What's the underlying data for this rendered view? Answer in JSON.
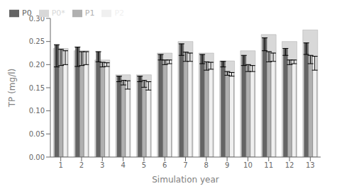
{
  "chart_data": {
    "type": "bar",
    "xlabel": "Simulation year",
    "ylabel": "TP (mg/l)",
    "categories": [
      "1",
      "2",
      "3",
      "4",
      "5",
      "6",
      "7",
      "8",
      "9",
      "10",
      "11",
      "12",
      "13"
    ],
    "series": [
      {
        "name": "P0*",
        "color": "#d8d8d8",
        "values": [
          0.235,
          0.23,
          0.21,
          0.178,
          0.178,
          0.225,
          0.25,
          0.225,
          0.208,
          0.23,
          0.265,
          0.25,
          0.275
        ]
      },
      {
        "name": "P0",
        "color": "#646464",
        "values": [
          0.243,
          0.238,
          0.228,
          0.175,
          0.175,
          0.222,
          0.245,
          0.222,
          0.207,
          0.22,
          0.258,
          0.235,
          0.247
        ],
        "error_lo": [
          0.048,
          0.042,
          0.022,
          0.012,
          0.012,
          0.012,
          0.025,
          0.02,
          0.012,
          0.022,
          0.028,
          0.015,
          0.025
        ]
      },
      {
        "name": "P1",
        "color": "#b0b0b0",
        "values": [
          0.233,
          0.228,
          0.205,
          0.166,
          0.166,
          0.21,
          0.227,
          0.206,
          0.185,
          0.2,
          0.228,
          0.21,
          0.22
        ],
        "error_lo": [
          0.035,
          0.03,
          0.01,
          0.01,
          0.015,
          0.01,
          0.02,
          0.018,
          0.008,
          0.015,
          0.022,
          0.01,
          0.018
        ]
      },
      {
        "name": "P2",
        "color": "#f0f0f0",
        "values": [
          0.23,
          0.228,
          0.204,
          0.165,
          0.163,
          0.21,
          0.225,
          0.205,
          0.183,
          0.198,
          0.225,
          0.21,
          0.218
        ],
        "error_lo": [
          0.03,
          0.028,
          0.008,
          0.018,
          0.018,
          0.008,
          0.018,
          0.015,
          0.008,
          0.013,
          0.018,
          0.008,
          0.03
        ]
      }
    ],
    "ylim": [
      0.0,
      0.3
    ],
    "yticks": [
      {
        "value": 0.0,
        "label": "0.00"
      },
      0.05,
      {
        "value": 0.1,
        "label": "0.10"
      },
      0.15,
      {
        "value": 0.2,
        "label": "0.20"
      },
      0.25,
      {
        "value": 0.3,
        "label": "0.30"
      }
    ],
    "grid": false,
    "legend": "upper left"
  }
}
